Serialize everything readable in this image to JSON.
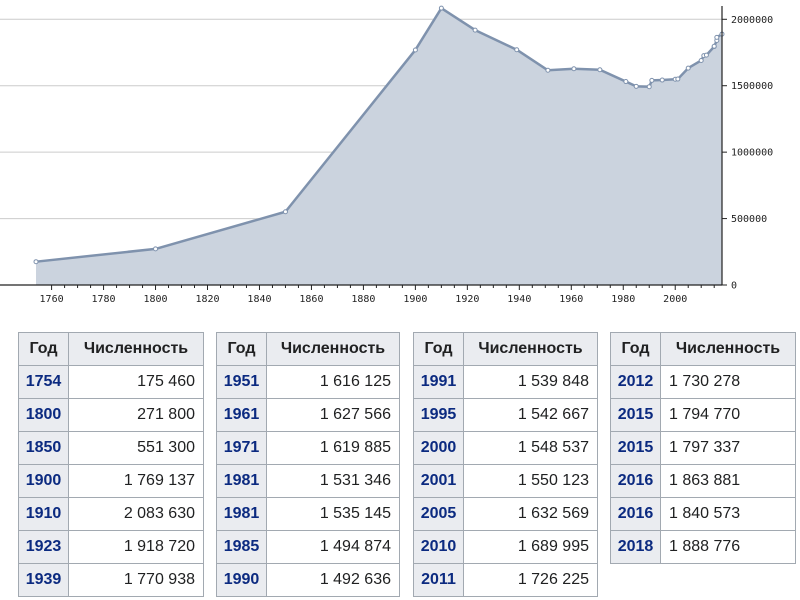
{
  "chart_data": {
    "type": "area",
    "title": "",
    "xlabel": "",
    "ylabel": "",
    "xlim": [
      1754,
      2018
    ],
    "ylim": [
      0,
      2100000
    ],
    "x_ticks": [
      1760,
      1780,
      1800,
      1820,
      1840,
      1860,
      1880,
      1900,
      1920,
      1940,
      1960,
      1980,
      2000
    ],
    "y_ticks": [
      0,
      500000,
      1000000,
      1500000,
      2000000
    ],
    "grid": true,
    "colors": {
      "fill": "#cbd3de",
      "line": "#7f92ad",
      "grid": "#cccccc"
    },
    "points": [
      {
        "x": 1754,
        "y": 175460
      },
      {
        "x": 1800,
        "y": 271800
      },
      {
        "x": 1850,
        "y": 551300
      },
      {
        "x": 1900,
        "y": 1769137
      },
      {
        "x": 1910,
        "y": 2083630
      },
      {
        "x": 1923,
        "y": 1918720
      },
      {
        "x": 1939,
        "y": 1770938
      },
      {
        "x": 1951,
        "y": 1616125
      },
      {
        "x": 1961,
        "y": 1627566
      },
      {
        "x": 1971,
        "y": 1619885
      },
      {
        "x": 1981,
        "y": 1531346
      },
      {
        "x": 1985,
        "y": 1494874
      },
      {
        "x": 1990,
        "y": 1492636
      },
      {
        "x": 1991,
        "y": 1539848
      },
      {
        "x": 1995,
        "y": 1542667
      },
      {
        "x": 2000,
        "y": 1548537
      },
      {
        "x": 2001,
        "y": 1550123
      },
      {
        "x": 2005,
        "y": 1632569
      },
      {
        "x": 2010,
        "y": 1689995
      },
      {
        "x": 2011,
        "y": 1726225
      },
      {
        "x": 2012,
        "y": 1730278
      },
      {
        "x": 2015,
        "y": 1794770
      },
      {
        "x": 2015,
        "y": 1797337
      },
      {
        "x": 2016,
        "y": 1840573
      },
      {
        "x": 2016,
        "y": 1863881
      },
      {
        "x": 2018,
        "y": 1888776
      }
    ]
  },
  "tables": [
    {
      "header": {
        "year": "Год",
        "pop": "Численность"
      },
      "rows": [
        {
          "year": "1754",
          "pop": "175 460"
        },
        {
          "year": "1800",
          "pop": "271 800"
        },
        {
          "year": "1850",
          "pop": "551 300"
        },
        {
          "year": "1900",
          "pop": "1 769 137"
        },
        {
          "year": "1910",
          "pop": "2 083 630"
        },
        {
          "year": "1923",
          "pop": "1 918 720"
        },
        {
          "year": "1939",
          "pop": "1 770 938"
        }
      ]
    },
    {
      "header": {
        "year": "Год",
        "pop": "Численность"
      },
      "rows": [
        {
          "year": "1951",
          "pop": "1 616 125"
        },
        {
          "year": "1961",
          "pop": "1 627 566"
        },
        {
          "year": "1971",
          "pop": "1 619 885"
        },
        {
          "year": "1981",
          "pop": "1 531 346"
        },
        {
          "year": "1981",
          "pop": "1 535 145"
        },
        {
          "year": "1985",
          "pop": "1 494 874"
        },
        {
          "year": "1990",
          "pop": "1 492 636"
        }
      ]
    },
    {
      "header": {
        "year": "Год",
        "pop": "Численность"
      },
      "rows": [
        {
          "year": "1991",
          "pop": "1 539 848"
        },
        {
          "year": "1995",
          "pop": "1 542 667"
        },
        {
          "year": "2000",
          "pop": "1 548 537"
        },
        {
          "year": "2001",
          "pop": "1 550 123"
        },
        {
          "year": "2005",
          "pop": "1 632 569"
        },
        {
          "year": "2010",
          "pop": "1 689 995"
        },
        {
          "year": "2011",
          "pop": "1 726 225"
        }
      ]
    },
    {
      "header": {
        "year": "Год",
        "pop": "Численность"
      },
      "rows": [
        {
          "year": "2012",
          "pop": "1 730 278"
        },
        {
          "year": "2015",
          "pop": "1 794 770"
        },
        {
          "year": "2015",
          "pop": "1 797 337"
        },
        {
          "year": "2016",
          "pop": "1 863 881"
        },
        {
          "year": "2016",
          "pop": "1 840 573"
        },
        {
          "year": "2018",
          "pop": "1 888 776"
        }
      ]
    }
  ]
}
